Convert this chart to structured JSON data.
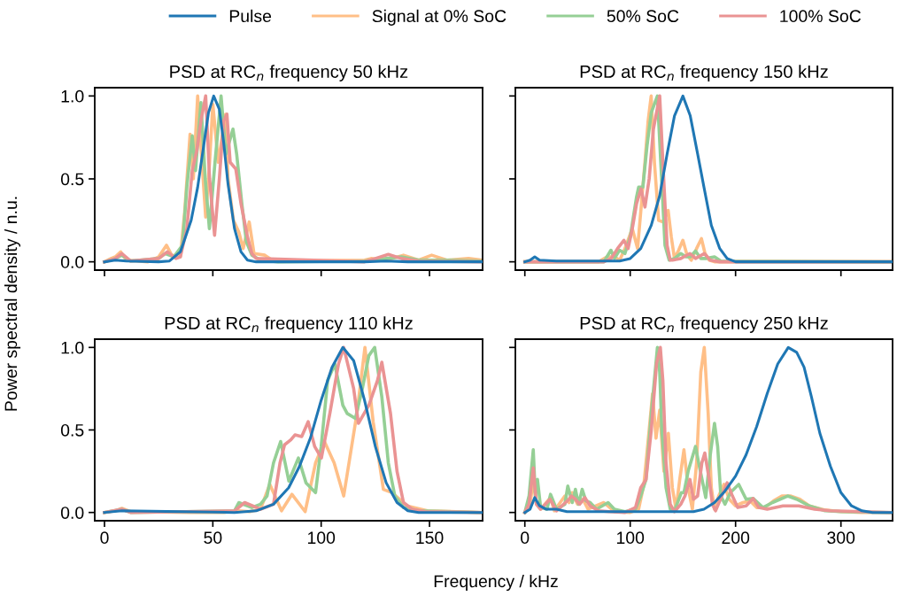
{
  "chart_data": [
    {
      "type": "line",
      "title": "PSD at RC$_{n}$ frequency 50 kHz",
      "xlabel": "Frequency / kHz",
      "ylabel": "Power spectral density / n.u.",
      "legend": "top",
      "tick_labels": "y",
      "grid": false,
      "xlim": [
        -4.5,
        174.5
      ],
      "xticks": [
        {
          "value": 0,
          "label": null
        },
        {
          "value": 50,
          "label": null
        },
        {
          "value": 100,
          "label": null
        },
        {
          "value": 150,
          "label": null
        }
      ],
      "ylim": [
        -0.05,
        1.05
      ],
      "yticks": [
        {
          "value": 0,
          "label": "0.0"
        },
        {
          "value": 0.5,
          "label": "0.5"
        },
        {
          "value": 1,
          "label": "1.0"
        }
      ],
      "series": [
        {
          "name": "Pulse",
          "color": "#1f77b4",
          "x": [
            0,
            5,
            10,
            25,
            30,
            35,
            40,
            43,
            46,
            48,
            50.4,
            53,
            55,
            57,
            60,
            63,
            66,
            70,
            120,
            130,
            140,
            174
          ],
          "values": [
            0,
            0.01,
            0.005,
            0,
            0.005,
            0.06,
            0.25,
            0.45,
            0.72,
            0.9,
            1.0,
            0.92,
            0.72,
            0.47,
            0.2,
            0.06,
            0.01,
            0,
            0,
            0.005,
            0,
            0
          ]
        },
        {
          "name": "Signal at 0% SoC",
          "color": "#ffbf87",
          "x": [
            0,
            3,
            5,
            7.5,
            10,
            20,
            25,
            28.6,
            31,
            35,
            37,
            39.5,
            41,
            43,
            45,
            46.7,
            48.5,
            50,
            52.5,
            55.9,
            57,
            59.5,
            62,
            64,
            66.8,
            69,
            74,
            78,
            120,
            123,
            130,
            138,
            145,
            151,
            158,
            168,
            174
          ],
          "values": [
            0,
            0.02,
            0.03,
            0.06,
            0.01,
            0,
            0.03,
            0.1,
            0.04,
            0.03,
            0.3,
            0.77,
            0.5,
            1.0,
            0.6,
            0.27,
            0.6,
            0.95,
            0.6,
            0.89,
            0.5,
            0.25,
            0.18,
            0.08,
            0.24,
            0.05,
            0.04,
            0.005,
            0.01,
            0.02,
            0.01,
            0.04,
            0.01,
            0.04,
            0.01,
            0.02,
            0.01
          ]
        },
        {
          "name": "50% SoC",
          "color": "#95cf95",
          "x": [
            0,
            5,
            8,
            12,
            25,
            28,
            32,
            36,
            38,
            40.5,
            42,
            44.5,
            46.5,
            48.4,
            51,
            53.8,
            56,
            59.3,
            61,
            63.4,
            65.5,
            68,
            72,
            80,
            120,
            130,
            137,
            145,
            160,
            174
          ],
          "values": [
            0,
            0.02,
            0.04,
            0.005,
            0.02,
            0.05,
            0.03,
            0.1,
            0.45,
            0.76,
            0.55,
            0.96,
            0.5,
            0.2,
            0.6,
            1.0,
            0.65,
            0.8,
            0.65,
            0.35,
            0.12,
            0.04,
            0.01,
            0,
            0.005,
            0.02,
            0.03,
            0.01,
            0.01,
            0.005
          ]
        },
        {
          "name": "100% SoC",
          "color": "#ea9393",
          "x": [
            0,
            5,
            8,
            12,
            25,
            29,
            33,
            35,
            38,
            40.5,
            42.6,
            44.5,
            46.7,
            48.5,
            50.8,
            53,
            55,
            56.5,
            58,
            60.6,
            63,
            66,
            68,
            70,
            120,
            125,
            131,
            137,
            145,
            174
          ],
          "values": [
            0,
            0.02,
            0.05,
            0.005,
            0.02,
            0.06,
            0.02,
            0.03,
            0.2,
            0.55,
            0.67,
            0.85,
            1.0,
            0.5,
            0.16,
            0.5,
            0.85,
            0.89,
            0.6,
            0.56,
            0.35,
            0.15,
            0.05,
            0.02,
            0,
            0.02,
            0.045,
            0.02,
            0.005,
            0
          ]
        }
      ]
    },
    {
      "type": "line",
      "title": "PSD at RC$_{n}$ frequency 150 kHz",
      "tick_labels": false,
      "grid": false,
      "xlim": [
        -9,
        349
      ],
      "xticks": [
        {
          "value": 0,
          "label": null
        },
        {
          "value": 100,
          "label": null
        },
        {
          "value": 200,
          "label": null
        },
        {
          "value": 300,
          "label": null
        }
      ],
      "ylim": [
        -0.05,
        1.05
      ],
      "yticks": [
        {
          "value": 0,
          "label": null
        },
        {
          "value": 0.5,
          "label": null
        },
        {
          "value": 1,
          "label": null
        }
      ],
      "series": [
        {
          "color": "#1f77b4",
          "x": [
            0,
            5,
            9.4,
            14,
            30,
            90,
            100,
            110,
            120,
            128,
            135,
            142,
            150,
            157,
            164,
            170,
            177,
            185,
            192,
            200,
            349
          ],
          "values": [
            0,
            0.01,
            0.03,
            0.01,
            0.005,
            0.005,
            0.02,
            0.08,
            0.22,
            0.4,
            0.65,
            0.88,
            1.0,
            0.88,
            0.65,
            0.45,
            0.22,
            0.08,
            0.02,
            0,
            0
          ]
        },
        {
          "color": "#ffbf87",
          "x": [
            0,
            70,
            78,
            85,
            90,
            95,
            102,
            107,
            110,
            114,
            117,
            119.9,
            123,
            127,
            131,
            136,
            139,
            142,
            146,
            150,
            154,
            158,
            163,
            167.6,
            171,
            175,
            180,
            349
          ],
          "values": [
            0,
            0,
            0.03,
            0.03,
            0.01,
            0.08,
            0.2,
            0.08,
            0.3,
            0.6,
            0.85,
            1.0,
            0.6,
            0.25,
            0.24,
            0.31,
            0.15,
            0.02,
            0.07,
            0.13,
            0.04,
            0.01,
            0.08,
            0.14,
            0.05,
            0.01,
            0,
            0
          ]
        },
        {
          "color": "#95cf95",
          "x": [
            0,
            75,
            81.7,
            85,
            89.9,
            95,
            100,
            106,
            108,
            112,
            116,
            120,
            125.8,
            129,
            133,
            137,
            142,
            148,
            153,
            157,
            162,
            167,
            172,
            180,
            186,
            349
          ],
          "values": [
            0,
            0,
            0.07,
            0.02,
            0.07,
            0.05,
            0.15,
            0.39,
            0.45,
            0.45,
            0.7,
            0.9,
            1.0,
            0.6,
            0.1,
            0.01,
            0.02,
            0.05,
            0.03,
            0.03,
            0.065,
            0.02,
            0.02,
            0.03,
            0.005,
            0
          ]
        },
        {
          "color": "#ea9393",
          "x": [
            0,
            75,
            82,
            88,
            94,
            98,
            102,
            106,
            110.3,
            114,
            118,
            122,
            128,
            131,
            135,
            138,
            140,
            148,
            156.7,
            162,
            170.3,
            176,
            185,
            349
          ],
          "values": [
            0,
            0,
            0.02,
            0.08,
            0.13,
            0.08,
            0.2,
            0.35,
            0.44,
            0.33,
            0.5,
            0.8,
            1.0,
            0.6,
            0.1,
            0.01,
            0.01,
            0.02,
            0.05,
            0.02,
            0.05,
            0.01,
            0,
            0
          ]
        }
      ]
    },
    {
      "type": "line",
      "title": "PSD at RC$_{n}$ frequency 110 kHz",
      "grid": false,
      "xlim": [
        -4.5,
        174.5
      ],
      "xticks": [
        0,
        50,
        100,
        150
      ],
      "ylim": [
        -0.05,
        1.05
      ],
      "yticks": [
        {
          "value": 0,
          "label": "0.0"
        },
        {
          "value": 0.5,
          "label": "0.5"
        },
        {
          "value": 1,
          "label": "1.0"
        }
      ],
      "series": [
        {
          "color": "#1f77b4",
          "x": [
            0,
            8,
            60,
            70,
            78,
            85,
            90,
            95,
            100,
            105,
            110,
            115,
            120,
            125,
            130,
            135,
            140,
            145,
            174
          ],
          "values": [
            0,
            0.01,
            0,
            0.01,
            0.05,
            0.15,
            0.28,
            0.45,
            0.68,
            0.88,
            1.0,
            0.92,
            0.68,
            0.4,
            0.18,
            0.06,
            0.01,
            0,
            0
          ]
        },
        {
          "color": "#ffbf87",
          "x": [
            0,
            5,
            8,
            12,
            40,
            55,
            62,
            67,
            72,
            76.3,
            81.7,
            86.5,
            92.6,
            97.4,
            101.5,
            106,
            110.4,
            116.5,
            120.2,
            124,
            128.7,
            132.8,
            139.6,
            149,
            174
          ],
          "values": [
            0,
            0.01,
            0.025,
            0.005,
            0,
            0,
            0.01,
            0.005,
            0.02,
            0.17,
            0.01,
            0.11,
            0.005,
            0.3,
            0.43,
            0.3,
            0.1,
            0.6,
            1.0,
            0.55,
            0.14,
            0.12,
            0.04,
            0.01,
            0
          ]
        },
        {
          "color": "#95cf95",
          "x": [
            0,
            8,
            12,
            60,
            62,
            68,
            72,
            75,
            78,
            81.3,
            85.1,
            89.5,
            93,
            97.4,
            100,
            103,
            106.3,
            110,
            112,
            115.8,
            119,
            122,
            124.7,
            128,
            131,
            134,
            138,
            145,
            174
          ],
          "values": [
            0,
            0.02,
            0,
            0.01,
            0.06,
            0.03,
            0.05,
            0.1,
            0.3,
            0.43,
            0.19,
            0.33,
            0.18,
            0.12,
            0.4,
            0.8,
            0.9,
            0.65,
            0.6,
            0.57,
            0.75,
            0.95,
            1.0,
            0.7,
            0.3,
            0.1,
            0.03,
            0.01,
            0
          ]
        },
        {
          "color": "#ea9393",
          "x": [
            0,
            8,
            12,
            60,
            64.7,
            72,
            78,
            81,
            83.1,
            86,
            87.9,
            91,
            94,
            97,
            100.1,
            104,
            108,
            110.4,
            115,
            117.2,
            122,
            126,
            128,
            132,
            135,
            138,
            142,
            148,
            174
          ],
          "values": [
            0,
            0.02,
            0,
            0.01,
            0.06,
            0.02,
            0.05,
            0.3,
            0.41,
            0.44,
            0.47,
            0.46,
            0.55,
            0.4,
            0.33,
            0.6,
            0.9,
            1.0,
            0.75,
            0.54,
            0.65,
            0.8,
            0.91,
            0.6,
            0.25,
            0.06,
            0.02,
            0.005,
            0
          ]
        }
      ]
    },
    {
      "type": "line",
      "title": "PSD at RC$_{n}$ frequency 250 kHz",
      "tick_labels": "x",
      "grid": false,
      "xlim": [
        -9,
        349
      ],
      "xticks": [
        0,
        100,
        200,
        300
      ],
      "ylim": [
        -0.05,
        1.05
      ],
      "yticks": [
        {
          "value": 0,
          "label": null
        },
        {
          "value": 0.5,
          "label": null
        },
        {
          "value": 1,
          "label": null
        }
      ],
      "series": [
        {
          "color": "#1f77b4",
          "x": [
            0,
            5,
            9.4,
            14,
            20,
            30,
            40,
            100,
            160,
            170,
            180,
            190,
            200,
            210,
            220,
            230,
            240,
            250,
            258,
            265,
            272,
            280,
            290,
            300,
            310,
            320,
            330,
            349
          ],
          "values": [
            0,
            0.02,
            0.09,
            0.04,
            0.02,
            0.02,
            0.005,
            0.005,
            0.005,
            0.02,
            0.06,
            0.13,
            0.22,
            0.35,
            0.52,
            0.72,
            0.9,
            1.0,
            0.97,
            0.88,
            0.7,
            0.48,
            0.28,
            0.12,
            0.04,
            0.01,
            0,
            0
          ]
        },
        {
          "color": "#ffbf87",
          "x": [
            0,
            5,
            8,
            11,
            15,
            24.4,
            28,
            38,
            42,
            45,
            50,
            55,
            60,
            75,
            85,
            100,
            108,
            113,
            118,
            121.2,
            124.5,
            128,
            132,
            136.2,
            140,
            143.5,
            147,
            151,
            155,
            159,
            163,
            167,
            170.3,
            174,
            177,
            180,
            184,
            189,
            194,
            200,
            207,
            214,
            220,
            228,
            236,
            244,
            252,
            261,
            270,
            285,
            300,
            320,
            349
          ],
          "values": [
            0,
            0.05,
            0.2,
            0.05,
            0.02,
            0.09,
            0.01,
            0.1,
            0.06,
            0.12,
            0.05,
            0.08,
            0.02,
            0.06,
            0.005,
            0,
            0.02,
            0.17,
            0.5,
            0.72,
            0.45,
            0.62,
            0.25,
            0.48,
            0.15,
            0.02,
            0.2,
            0.38,
            0.15,
            0.02,
            0.3,
            0.85,
            1.0,
            0.6,
            0.15,
            0.02,
            0.1,
            0.17,
            0.08,
            0.04,
            0.06,
            0.07,
            0.03,
            0.03,
            0.07,
            0.1,
            0.1,
            0.08,
            0.04,
            0.015,
            0.005,
            0,
            0
          ]
        },
        {
          "color": "#95cf95",
          "x": [
            0,
            4,
            8,
            10,
            12,
            15,
            21,
            24.4,
            30,
            38,
            40.8,
            45,
            48,
            51,
            54.4,
            58,
            62,
            68,
            79,
            85,
            95,
            105,
            110,
            115,
            120,
            125.8,
            128,
            130,
            134,
            138,
            142,
            148.5,
            151,
            155,
            162,
            165,
            171.7,
            176,
            180,
            183,
            186,
            190,
            195,
            203,
            210,
            216.7,
            226,
            235,
            249.4,
            258,
            270,
            285,
            300,
            349
          ],
          "values": [
            0,
            0.1,
            0.38,
            0.1,
            0.2,
            0.03,
            0.02,
            0.11,
            0.02,
            0.05,
            0.16,
            0.06,
            0.14,
            0.05,
            0.14,
            0.07,
            0.06,
            0.02,
            0.06,
            0.02,
            0.005,
            0.02,
            0.1,
            0.2,
            0.6,
            1.0,
            0.85,
            0.5,
            0.15,
            0.02,
            0.01,
            0.12,
            0.12,
            0.25,
            0.4,
            0.3,
            0.09,
            0.35,
            0.54,
            0.4,
            0.1,
            0.05,
            0.12,
            0.17,
            0.08,
            0.085,
            0.03,
            0.06,
            0.1,
            0.08,
            0.04,
            0.01,
            0.005,
            0
          ]
        },
        {
          "color": "#ea9393",
          "x": [
            0,
            4,
            8,
            11,
            15,
            24,
            30,
            42,
            44,
            48,
            52,
            57,
            62,
            70,
            80,
            95,
            105,
            110,
            115,
            120,
            125,
            128.6,
            131,
            134,
            138,
            142,
            148,
            152,
            156.7,
            160,
            164,
            168,
            170.8,
            175,
            178,
            181,
            185,
            192,
            197,
            202,
            210,
            216.7,
            222,
            230,
            245,
            260,
            275,
            290,
            349
          ],
          "values": [
            0,
            0.05,
            0.27,
            0.05,
            0.02,
            0.08,
            0.01,
            0.08,
            0.1,
            0.08,
            0.05,
            0.09,
            0.04,
            0.01,
            0.005,
            0,
            0.03,
            0.15,
            0.2,
            0.5,
            0.9,
            1.0,
            0.8,
            0.3,
            0.05,
            0.005,
            0.05,
            0.1,
            0.2,
            0.08,
            0.1,
            0.3,
            0.36,
            0.2,
            0.05,
            0.01,
            0.07,
            0.18,
            0.1,
            0.03,
            0.04,
            0.085,
            0.03,
            0.02,
            0.04,
            0.04,
            0.02,
            0.01,
            0
          ]
        }
      ]
    }
  ]
}
